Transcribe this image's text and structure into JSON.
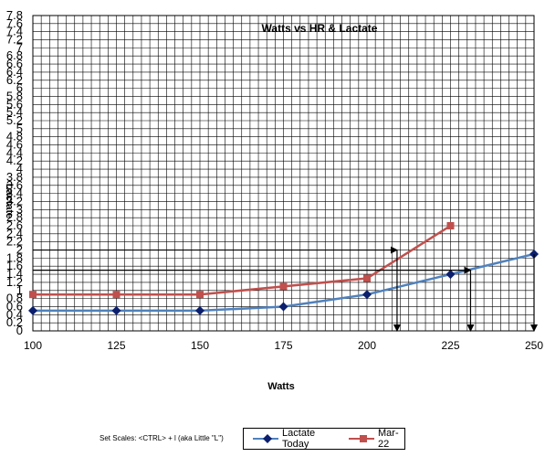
{
  "chart_data": {
    "type": "line",
    "title": "Watts vs HR & Lactate",
    "xlabel": "Watts",
    "ylabel": "Lactate",
    "x": [
      100,
      125,
      150,
      175,
      200,
      225,
      250
    ],
    "x_tick_labels": [
      "100",
      "125",
      "150",
      "175",
      "200",
      "225",
      "250"
    ],
    "y_tick_labels": [
      "0",
      "0.2",
      "0.4",
      "0.6",
      "0.8",
      "1",
      "1.2",
      "1.4",
      "1.6",
      "1.8",
      "2",
      "2.2",
      "2.4",
      "2.6",
      "2.8",
      "3",
      "3.2",
      "3.4",
      "3.6",
      "3.8",
      "4",
      "4.2",
      "4.4",
      "4.6",
      "4.8",
      "5",
      "5.2",
      "5.4",
      "5.6",
      "5.8",
      "6",
      "6.2",
      "6.4",
      "6.6",
      "6.8",
      "7",
      "7.2",
      "7.4",
      "7.6",
      "7.8"
    ],
    "ylim": [
      0,
      7.8
    ],
    "xlim": [
      100,
      250
    ],
    "grid": true,
    "legend_position": "bottom",
    "series": [
      {
        "name": "Lactate Today",
        "color": "#4f81bd",
        "marker_color": "#0b1f6e",
        "marker": "diamond",
        "x": [
          100,
          125,
          150,
          175,
          200,
          225,
          250
        ],
        "values": [
          0.5,
          0.5,
          0.5,
          0.6,
          0.9,
          1.4,
          1.9
        ]
      },
      {
        "name": "Mar-22",
        "color": "#c0504d",
        "marker_color": "#c0504d",
        "marker": "square",
        "x": [
          100,
          125,
          150,
          175,
          200,
          225
        ],
        "values": [
          0.9,
          0.9,
          0.9,
          1.1,
          1.3,
          2.6
        ]
      }
    ],
    "annotations": [
      {
        "type": "arrow-path",
        "points": [
          [
            100,
            2.0
          ],
          [
            209,
            2.0
          ],
          [
            209,
            0
          ]
        ]
      },
      {
        "type": "arrow-path",
        "points": [
          [
            100,
            1.5
          ],
          [
            231,
            1.5
          ],
          [
            231,
            0
          ]
        ]
      },
      {
        "type": "arrow-path",
        "points": [
          [
            250,
            1.9
          ],
          [
            250,
            0
          ]
        ]
      }
    ]
  },
  "footer": {
    "text": "Set Scales: <CTRL> + l  (aka Little \"L\")"
  },
  "legend": {
    "items": [
      "Lactate Today",
      "Mar-22"
    ]
  }
}
